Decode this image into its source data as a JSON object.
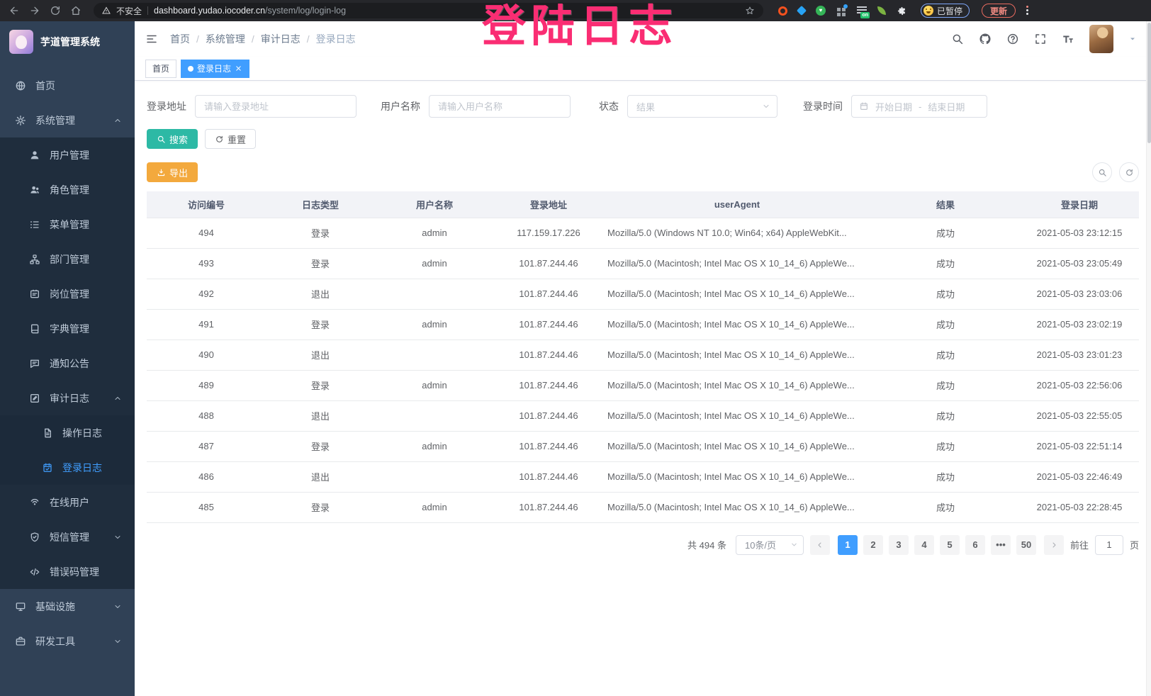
{
  "browser": {
    "security_label": "不安全",
    "url_host": "dashboard.yudao.iocoder.cn",
    "url_path": "/system/log/login-log",
    "paused_label": "已暂停",
    "update_label": "更新",
    "extension_icons": [
      {
        "name": "ext-orange-icon"
      },
      {
        "name": "ext-blue-diamond-icon"
      },
      {
        "name": "ext-green-heart-icon"
      },
      {
        "name": "ext-grid-icon"
      },
      {
        "name": "ext-list-on-icon",
        "badge": "on"
      },
      {
        "name": "ext-leaf-icon"
      },
      {
        "name": "ext-puzzle-icon"
      }
    ]
  },
  "watermark": "登陆日志",
  "sidebar": {
    "app_title": "芋道管理系统",
    "items": [
      {
        "id": "home",
        "label": "首页",
        "icon": "dashboard-icon",
        "level": 1
      },
      {
        "id": "system",
        "label": "系统管理",
        "icon": "gear-icon",
        "level": 1,
        "chevron": "up"
      },
      {
        "id": "user",
        "label": "用户管理",
        "icon": "user-icon",
        "level": 2
      },
      {
        "id": "role",
        "label": "角色管理",
        "icon": "role-icon",
        "level": 2
      },
      {
        "id": "menu",
        "label": "菜单管理",
        "icon": "menu-icon",
        "level": 2
      },
      {
        "id": "dept",
        "label": "部门管理",
        "icon": "dept-icon",
        "level": 2
      },
      {
        "id": "post",
        "label": "岗位管理",
        "icon": "post-icon",
        "level": 2
      },
      {
        "id": "dict",
        "label": "字典管理",
        "icon": "dict-icon",
        "level": 2
      },
      {
        "id": "notice",
        "label": "通知公告",
        "icon": "notice-icon",
        "level": 2
      },
      {
        "id": "audit",
        "label": "审计日志",
        "icon": "audit-icon",
        "level": 2,
        "chevron": "up"
      },
      {
        "id": "operate-log",
        "label": "操作日志",
        "icon": "operate-log-icon",
        "level": 3
      },
      {
        "id": "login-log",
        "label": "登录日志",
        "icon": "login-log-icon",
        "level": 3,
        "active": true
      },
      {
        "id": "online-user",
        "label": "在线用户",
        "icon": "online-user-icon",
        "level": 2
      },
      {
        "id": "sms",
        "label": "短信管理",
        "icon": "sms-icon",
        "level": 2,
        "chevron": "down"
      },
      {
        "id": "error-code",
        "label": "错误码管理",
        "icon": "error-code-icon",
        "level": 2
      },
      {
        "id": "infra",
        "label": "基础设施",
        "icon": "infra-icon",
        "level": 1,
        "chevron": "down"
      },
      {
        "id": "devtool",
        "label": "研发工具",
        "icon": "devtool-icon",
        "level": 1,
        "chevron": "down"
      }
    ]
  },
  "header": {
    "breadcrumb": [
      "首页",
      "系统管理",
      "审计日志",
      "登录日志"
    ]
  },
  "tabs": [
    {
      "label": "首页",
      "active": false
    },
    {
      "label": "登录日志",
      "active": true
    }
  ],
  "filters": {
    "login_address_label": "登录地址",
    "login_address_placeholder": "请输入登录地址",
    "username_label": "用户名称",
    "username_placeholder": "请输入用户名称",
    "status_label": "状态",
    "status_placeholder": "结果",
    "login_time_label": "登录时间",
    "date_start_placeholder": "开始日期",
    "date_separator": "-",
    "date_end_placeholder": "结束日期"
  },
  "actions": {
    "search": "搜索",
    "reset": "重置",
    "export": "导出"
  },
  "table": {
    "headers": [
      "访问编号",
      "日志类型",
      "用户名称",
      "登录地址",
      "userAgent",
      "结果",
      "登录日期"
    ],
    "rows": [
      [
        "494",
        "登录",
        "admin",
        "117.159.17.226",
        "Mozilla/5.0 (Windows NT 10.0; Win64; x64) AppleWebKit...",
        "成功",
        "2021-05-03 23:12:15"
      ],
      [
        "493",
        "登录",
        "admin",
        "101.87.244.46",
        "Mozilla/5.0 (Macintosh; Intel Mac OS X 10_14_6) AppleWe...",
        "成功",
        "2021-05-03 23:05:49"
      ],
      [
        "492",
        "退出",
        "",
        "101.87.244.46",
        "Mozilla/5.0 (Macintosh; Intel Mac OS X 10_14_6) AppleWe...",
        "成功",
        "2021-05-03 23:03:06"
      ],
      [
        "491",
        "登录",
        "admin",
        "101.87.244.46",
        "Mozilla/5.0 (Macintosh; Intel Mac OS X 10_14_6) AppleWe...",
        "成功",
        "2021-05-03 23:02:19"
      ],
      [
        "490",
        "退出",
        "",
        "101.87.244.46",
        "Mozilla/5.0 (Macintosh; Intel Mac OS X 10_14_6) AppleWe...",
        "成功",
        "2021-05-03 23:01:23"
      ],
      [
        "489",
        "登录",
        "admin",
        "101.87.244.46",
        "Mozilla/5.0 (Macintosh; Intel Mac OS X 10_14_6) AppleWe...",
        "成功",
        "2021-05-03 22:56:06"
      ],
      [
        "488",
        "退出",
        "",
        "101.87.244.46",
        "Mozilla/5.0 (Macintosh; Intel Mac OS X 10_14_6) AppleWe...",
        "成功",
        "2021-05-03 22:55:05"
      ],
      [
        "487",
        "登录",
        "admin",
        "101.87.244.46",
        "Mozilla/5.0 (Macintosh; Intel Mac OS X 10_14_6) AppleWe...",
        "成功",
        "2021-05-03 22:51:14"
      ],
      [
        "486",
        "退出",
        "",
        "101.87.244.46",
        "Mozilla/5.0 (Macintosh; Intel Mac OS X 10_14_6) AppleWe...",
        "成功",
        "2021-05-03 22:46:49"
      ],
      [
        "485",
        "登录",
        "admin",
        "101.87.244.46",
        "Mozilla/5.0 (Macintosh; Intel Mac OS X 10_14_6) AppleWe...",
        "成功",
        "2021-05-03 22:28:45"
      ]
    ]
  },
  "pagination": {
    "total": "共 494 条",
    "page_size": "10条/页",
    "pages": [
      {
        "label": "1",
        "active": true
      },
      {
        "label": "2"
      },
      {
        "label": "3"
      },
      {
        "label": "4"
      },
      {
        "label": "5"
      },
      {
        "label": "6"
      },
      {
        "label": "•••"
      },
      {
        "label": "50"
      }
    ],
    "goto_label": "前往",
    "goto_value": "1",
    "page_unit": "页"
  }
}
